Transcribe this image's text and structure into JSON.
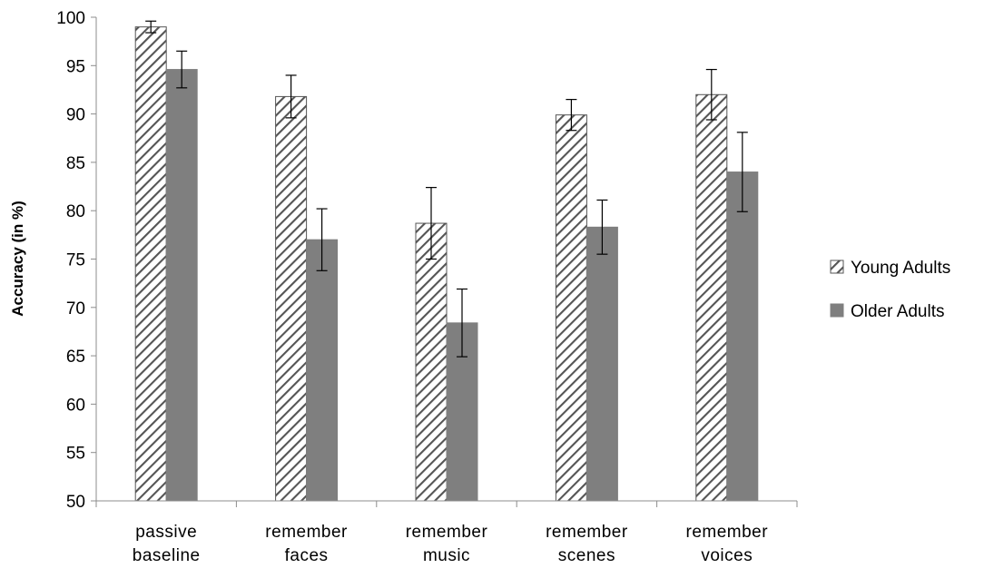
{
  "chart_data": {
    "type": "bar",
    "xlabel": "",
    "ylabel": "Accuracy (in %)",
    "ylim": [
      50,
      100
    ],
    "yticks": [
      50,
      55,
      60,
      65,
      70,
      75,
      80,
      85,
      90,
      95,
      100
    ],
    "grid": false,
    "legend_position": "right",
    "categories": [
      [
        "passive",
        "baseline"
      ],
      [
        "remember",
        "faces"
      ],
      [
        "remember",
        "music"
      ],
      [
        "remember",
        "scenes"
      ],
      [
        "remember",
        "voices"
      ]
    ],
    "series": [
      {
        "name": "Young Adults",
        "pattern": "hatched",
        "color": "#ffffff",
        "stroke": "#555555",
        "values": [
          99.0,
          91.8,
          78.7,
          89.9,
          92.0
        ],
        "errors": [
          0.6,
          2.2,
          3.7,
          1.6,
          2.6
        ]
      },
      {
        "name": "Older Adults",
        "pattern": "solid",
        "color": "#7f7f7f",
        "stroke": "#7f7f7f",
        "values": [
          94.6,
          77.0,
          68.4,
          78.3,
          84.0
        ],
        "errors": [
          1.9,
          3.2,
          3.5,
          2.8,
          4.1
        ]
      }
    ]
  }
}
